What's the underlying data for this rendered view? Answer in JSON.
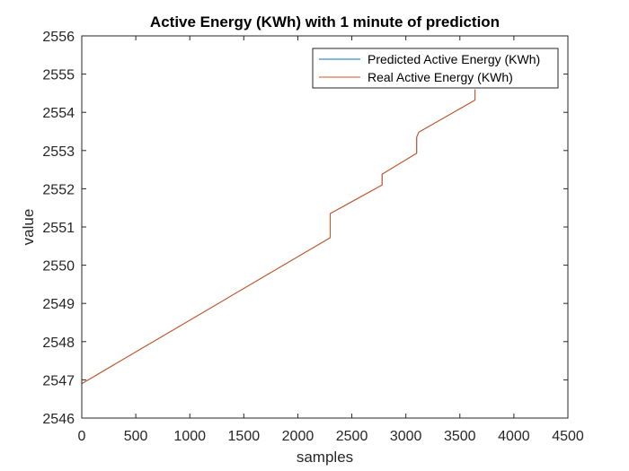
{
  "chart_data": {
    "type": "line",
    "title": "Active Energy (KWh) with 1 minute of prediction",
    "xlabel": "samples",
    "ylabel": "value",
    "xlim": [
      0,
      4500
    ],
    "ylim": [
      2546,
      2556
    ],
    "xticks": [
      0,
      500,
      1000,
      1500,
      2000,
      2500,
      3000,
      3500,
      4000,
      4500
    ],
    "yticks": [
      2546,
      2547,
      2548,
      2549,
      2550,
      2551,
      2552,
      2553,
      2554,
      2555,
      2556
    ],
    "grid": false,
    "legend_position": "top-right",
    "series": [
      {
        "name": "Predicted Active Energy (KWh)",
        "color": "#0072BD",
        "x": [
          0,
          2300,
          2300,
          2780,
          2780,
          3100,
          3100,
          3120,
          3640,
          3640
        ],
        "y": [
          2546.9,
          2550.72,
          2551.35,
          2552.1,
          2552.38,
          2552.93,
          2553.35,
          2553.48,
          2554.32,
          2554.6
        ]
      },
      {
        "name": "Real Active Energy (KWh)",
        "color": "#D95319",
        "x": [
          0,
          2300,
          2300,
          2780,
          2780,
          3100,
          3100,
          3120,
          3640,
          3640
        ],
        "y": [
          2546.9,
          2550.72,
          2551.35,
          2552.1,
          2552.38,
          2552.93,
          2553.35,
          2553.48,
          2554.32,
          2554.6
        ]
      }
    ]
  }
}
